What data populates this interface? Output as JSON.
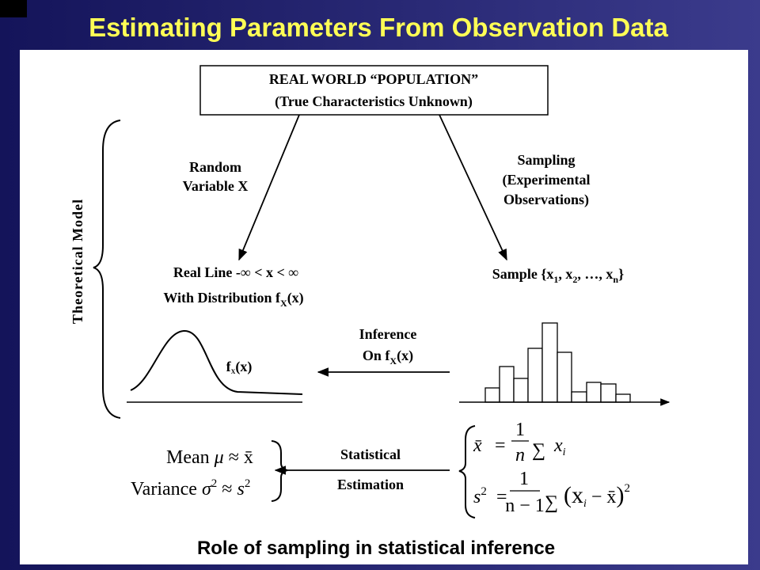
{
  "title": "Estimating Parameters From Observation Data",
  "population": {
    "line1": "REAL WORLD “POPULATION”",
    "line2": "(True Characteristics Unknown)"
  },
  "random_variable": {
    "lines": [
      "Random",
      "Variable X"
    ]
  },
  "sampling": {
    "lines": [
      "Sampling",
      "(Experimental",
      "Observations)"
    ]
  },
  "theoretical_model": "Theoretical Model",
  "real_line": {
    "line1": "Real Line -∞ < x < ∞",
    "line2": [
      "With Distribution f",
      "X",
      "(x)"
    ]
  },
  "sample": [
    "Sample {x",
    "1",
    ", x",
    "2",
    ", …, x",
    "n",
    "}"
  ],
  "inference": {
    "line1": "Inference",
    "line2": [
      "On f",
      "X",
      "(x)"
    ]
  },
  "curve_label": [
    "f",
    "X",
    "(x)"
  ],
  "estimation": {
    "lines": [
      "Statistical",
      "Estimation"
    ]
  },
  "estimates": {
    "mean": [
      "Mean",
      "μ",
      "≈",
      "x̄"
    ],
    "variance": [
      "Variance",
      "σ",
      "2",
      "≈",
      "s",
      "2"
    ]
  },
  "formulas": {
    "mean": {
      "lhs": "x̄",
      "eq": "=",
      "num": "1",
      "den": "n",
      "sum": "∑",
      "term": "x",
      "sub": "i"
    },
    "variance": {
      "lhs": "s",
      "sup": "2",
      "eq": "=",
      "num": "1",
      "den": "n − 1",
      "sum": "∑",
      "open": "(x",
      "sub": "i",
      "mid": " − x̄",
      "close": ")",
      "sup2": "2"
    }
  },
  "caption": "Role of sampling in statistical inference"
}
